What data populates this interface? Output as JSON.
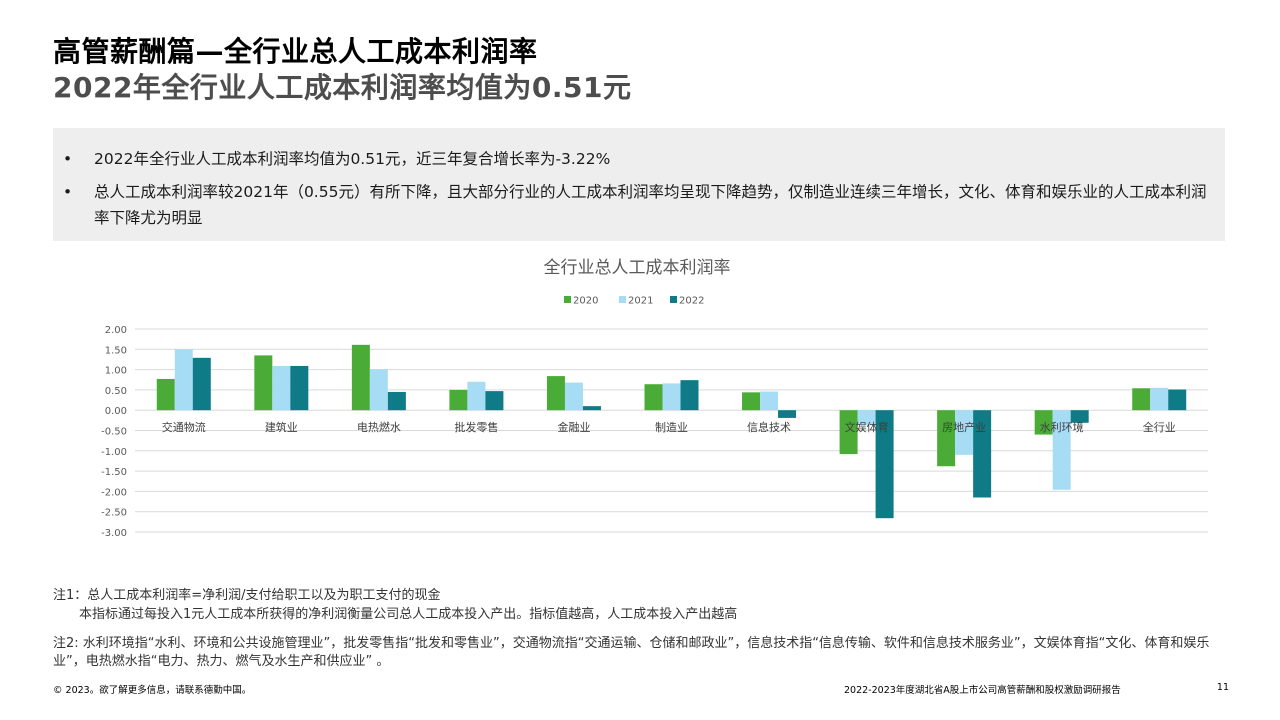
{
  "header": {
    "title": "高管薪酬篇—全行业总人工成本利润率",
    "subtitle": "2022年全行业人工成本利润率均值为0.51元"
  },
  "summary": {
    "bullets": [
      "2022年全行业人工成本利润率均值为0.51元，近三年复合增长率为-3.22%",
      "总人工成本利润率较2021年（0.55元）有所下降，且大部分行业的人工成本利润率均呈现下降趋势，仅制造业连续三年增长，文化、体育和娱乐业的人工成本利润率下降尤为明显"
    ],
    "bullet_symbol": "•"
  },
  "chart_data": {
    "type": "bar",
    "title": "全行业总人工成本利润率",
    "categories": [
      "交通物流",
      "建筑业",
      "电热燃水",
      "批发零售",
      "金融业",
      "制造业",
      "信息技术",
      "文娱体育",
      "房地产业",
      "水利环境",
      "全行业"
    ],
    "series": [
      {
        "name": "2020",
        "color": "#4aac36",
        "values": [
          0.77,
          1.35,
          1.61,
          0.5,
          0.84,
          0.64,
          0.44,
          -1.08,
          -1.38,
          -0.6,
          0.54
        ]
      },
      {
        "name": "2021",
        "color": "#a7dcf5",
        "values": [
          1.5,
          1.09,
          1.01,
          0.7,
          0.68,
          0.66,
          0.46,
          -0.37,
          -1.1,
          -1.96,
          0.55
        ]
      },
      {
        "name": "2022",
        "color": "#0e7b86",
        "values": [
          1.29,
          1.09,
          0.45,
          0.47,
          0.1,
          0.74,
          -0.19,
          -2.66,
          -2.15,
          -0.31,
          0.51
        ]
      }
    ],
    "ylim": [
      -3.0,
      2.0
    ],
    "yticks": [
      2.0,
      1.5,
      1.0,
      0.5,
      0.0,
      -0.5,
      -1.0,
      -1.5,
      -2.0,
      -2.5,
      -3.0
    ],
    "ytick_labels": [
      "2.00",
      "1.50",
      "1.00",
      "0.50",
      "0.00",
      "-0.50",
      "-1.00",
      "-1.50",
      "-2.00",
      "-2.50",
      "-3.00"
    ],
    "legend": "top-center",
    "grid": true,
    "xlabel": "",
    "ylabel": ""
  },
  "notes": {
    "note1_line1": "注1：总人工成本利润率=净利润/支付给职工以及为职工支付的现金",
    "note1_line2": "本指标通过每投入1元人工成本所获得的净利润衡量公司总人工成本投入产出。指标值越高，人工成本投入产出越高",
    "note2": "注2: 水利环境指“水利、环境和公共设施管理业”，批发零售指“批发和零售业”，交通物流指“交通运输、仓储和邮政业”，信息技术指“信息传输、软件和信息技术服务业”，文娱体育指“文化、体育和娱乐业”，电热燃水指“电力、热力、燃气及水生产和供应业”  。"
  },
  "footer": {
    "left": "© 2023。欲了解更多信息，请联系德勤中国。",
    "report": "2022-2023年度湖北省A股上市公司高管薪酬和股权激励调研报告",
    "page": "11"
  }
}
